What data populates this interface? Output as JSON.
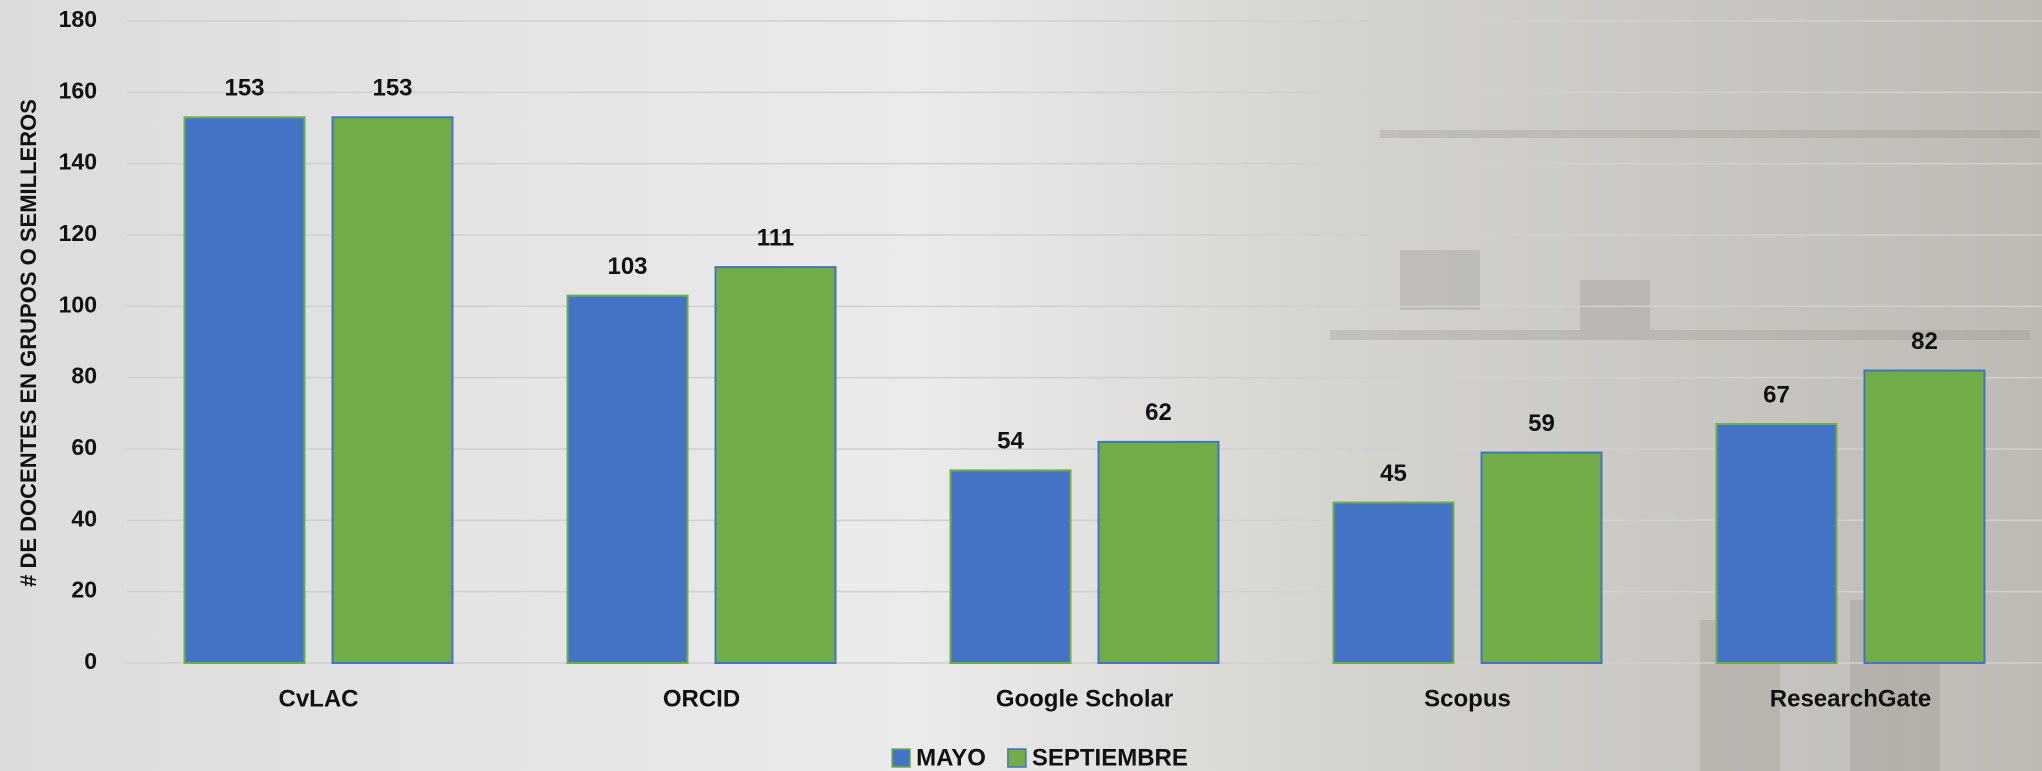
{
  "chart_data": {
    "type": "bar",
    "y_label": "# DE DOCENTES EN GRUPOS O SEMILLEROS",
    "categories": [
      "CvLAC",
      "ORCID",
      "Google Scholar",
      "Scopus",
      "ResearchGate"
    ],
    "series": [
      {
        "name": "MAYO",
        "color": "#4472c4",
        "values": [
          153,
          103,
          54,
          45,
          67
        ]
      },
      {
        "name": "SEPTIEMBRE",
        "color": "#70ad47",
        "values": [
          153,
          111,
          62,
          59,
          82
        ]
      }
    ],
    "ylim": [
      0,
      180
    ],
    "yticks": [
      0,
      20,
      40,
      60,
      80,
      100,
      120,
      140,
      160,
      180
    ],
    "grid": true,
    "legend": "bottom"
  }
}
